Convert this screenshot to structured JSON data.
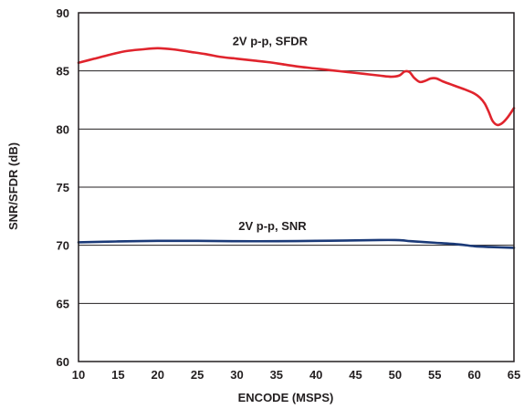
{
  "chart_data": {
    "type": "line",
    "xlabel": "ENCODE (MSPS)",
    "ylabel": "SNR/SFDR (dB)",
    "xlim": [
      10,
      65
    ],
    "ylim": [
      60,
      90
    ],
    "xticks": [
      10,
      15,
      20,
      25,
      30,
      35,
      40,
      45,
      50,
      55,
      60,
      65
    ],
    "yticks": [
      60,
      65,
      70,
      75,
      80,
      85,
      90
    ],
    "grid": "horizontal",
    "legend": "none",
    "series": [
      {
        "name": "2V p-p, SFDR",
        "color": "#e0242d",
        "x": [
          10,
          12,
          14,
          16,
          18,
          20,
          22,
          24,
          26,
          28,
          30,
          32,
          34,
          36,
          38,
          40,
          42,
          44,
          46,
          48,
          49.5,
          50.5,
          51.2,
          51.8,
          52.4,
          53.1,
          53.8,
          54.5,
          55.2,
          56,
          57,
          58,
          59,
          60,
          60.7,
          61.3,
          61.8,
          62.3,
          62.9,
          63.5,
          64.2,
          65
        ],
        "y": [
          85.7,
          86.05,
          86.4,
          86.7,
          86.85,
          86.95,
          86.85,
          86.65,
          86.45,
          86.2,
          86.05,
          85.9,
          85.75,
          85.55,
          85.35,
          85.2,
          85.05,
          84.9,
          84.75,
          84.6,
          84.5,
          84.6,
          84.95,
          84.9,
          84.4,
          84.05,
          84.15,
          84.35,
          84.35,
          84.1,
          83.85,
          83.6,
          83.35,
          83.05,
          82.7,
          82.2,
          81.5,
          80.7,
          80.35,
          80.5,
          81.0,
          81.8
        ]
      },
      {
        "name": "2V p-p, SNR",
        "color": "#1b3a78",
        "x": [
          10,
          15,
          20,
          25,
          30,
          35,
          40,
          45,
          48,
          50,
          51,
          52,
          55,
          58,
          60,
          62,
          65
        ],
        "y": [
          70.25,
          70.33,
          70.38,
          70.38,
          70.35,
          70.35,
          70.38,
          70.42,
          70.45,
          70.45,
          70.42,
          70.35,
          70.22,
          70.08,
          69.92,
          69.85,
          69.78
        ]
      }
    ],
    "annotations": [
      {
        "text": "2V p-p, SFDR",
        "x": 34.2,
        "y": 87.6
      },
      {
        "text": "2V p-p, SNR",
        "x": 34.5,
        "y": 71.7
      }
    ]
  }
}
